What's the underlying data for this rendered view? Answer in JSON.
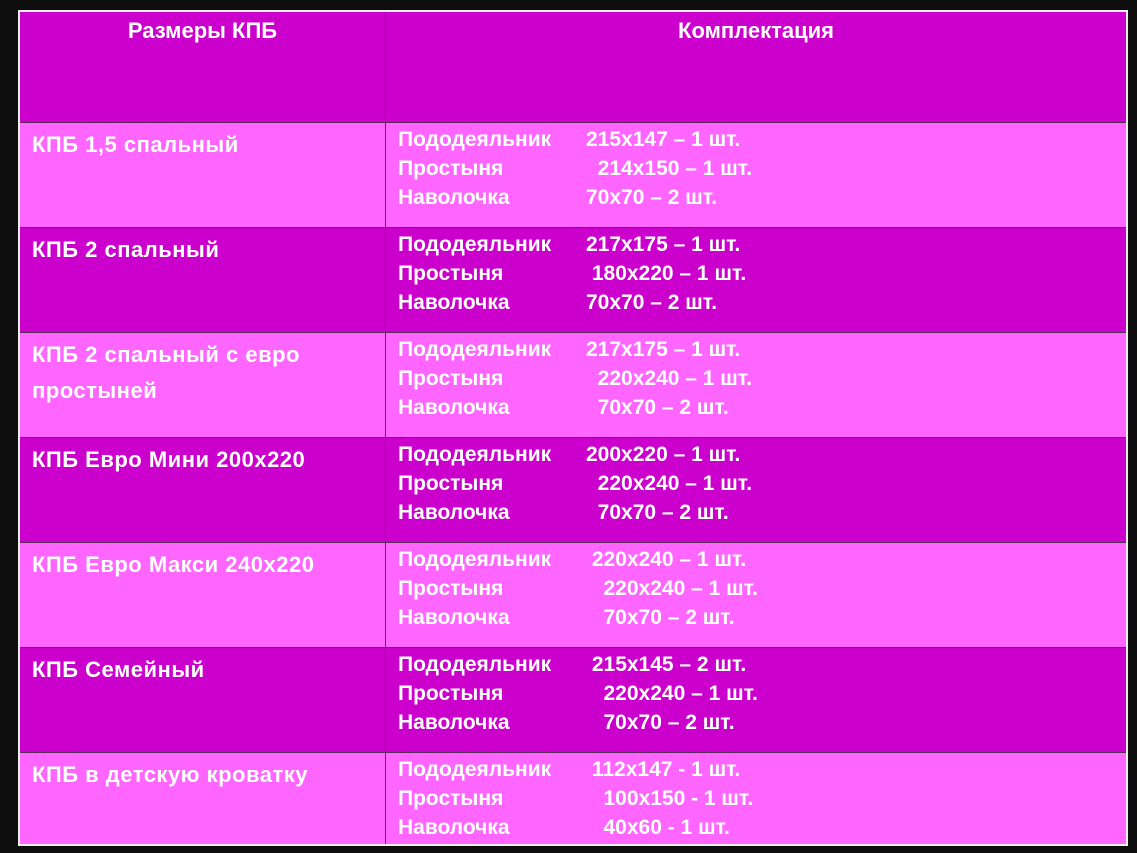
{
  "header": {
    "col1": "Размеры КПБ",
    "col2": "Комплектация"
  },
  "colors": {
    "background": "#0e0e0e",
    "dark_row": "#cc00cc",
    "light_row": "#ff66ff",
    "text": "#ffffff"
  },
  "rows": [
    {
      "size": "КПБ 1,5 спальный",
      "shade": "light",
      "items": [
        {
          "label": "Пододеяльник",
          "value": "215х147 – 1 шт."
        },
        {
          "label": "Простыня",
          "value": "  214х150 – 1 шт."
        },
        {
          "label": "Наволочка",
          "value": "70х70 – 2 шт."
        }
      ]
    },
    {
      "size": "КПБ 2 спальный",
      "shade": "dark",
      "items": [
        {
          "label": "Пододеяльник",
          "value": "217х175 – 1 шт."
        },
        {
          "label": "Простыня",
          "value": " 180х220 – 1 шт."
        },
        {
          "label": "Наволочка",
          "value": "70х70 – 2 шт."
        }
      ]
    },
    {
      "size": "КПБ 2 спальный с евро простыней",
      "shade": "light",
      "items": [
        {
          "label": "Пододеяльник",
          "value": "217х175 – 1 шт."
        },
        {
          "label": "Простыня",
          "value": "  220х240 – 1 шт."
        },
        {
          "label": "Наволочка",
          "value": "  70х70 – 2 шт."
        }
      ]
    },
    {
      "size": "КПБ  Евро Мини 200х220",
      "shade": "dark",
      "items": [
        {
          "label": "Пододеяльник",
          "value": "200х220 – 1 шт."
        },
        {
          "label": "Простыня",
          "value": "  220х240 – 1 шт."
        },
        {
          "label": "Наволочка",
          "value": "  70х70 – 2 шт."
        }
      ]
    },
    {
      "size": "КПБ  Евро Макси 240х220",
      "shade": "light",
      "items": [
        {
          "label": "Пододеяльник",
          "value": " 220х240 – 1 шт."
        },
        {
          "label": "Простыня",
          "value": "   220х240 – 1 шт."
        },
        {
          "label": "Наволочка",
          "value": "   70х70 – 2 шт."
        }
      ]
    },
    {
      "size": "КПБ Семейный",
      "shade": "dark",
      "items": [
        {
          "label": "Пододеяльник",
          "value": " 215х145 – 2 шт."
        },
        {
          "label": "Простыня",
          "value": "   220х240 – 1 шт."
        },
        {
          "label": "Наволочка",
          "value": "   70х70 – 2 шт."
        }
      ]
    },
    {
      "size": "КПБ  в детскую кроватку",
      "shade": "light",
      "items": [
        {
          "label": "Пододеяльник",
          "value": " 112х147 - 1 шт."
        },
        {
          "label": "Простыня",
          "value": "   100х150 - 1 шт."
        },
        {
          "label": "Наволочка",
          "value": "   40х60 - 1 шт."
        }
      ]
    }
  ]
}
